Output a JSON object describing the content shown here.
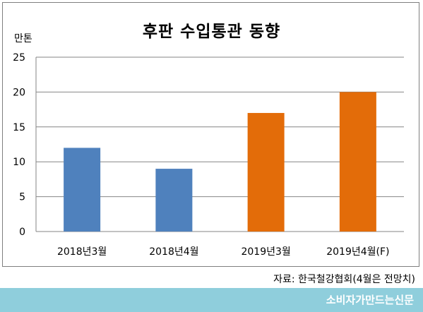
{
  "chart_data": {
    "type": "bar",
    "title": "후판 수입통관 동향",
    "unit_label": "만톤",
    "categories": [
      "2018년3월",
      "2018년4월",
      "2019년3월",
      "2019년4월(F)"
    ],
    "values": [
      12,
      9,
      17,
      20
    ],
    "bar_colors": [
      "#4f81bd",
      "#4f81bd",
      "#e36c09",
      "#e36c09"
    ],
    "ylim": [
      0,
      25
    ],
    "yticks": [
      "0",
      "5",
      "10",
      "15",
      "20",
      "25"
    ],
    "grid": true,
    "legend": "none"
  },
  "source_note": "자료: 한국철강협회(4월은 전망치)",
  "footer_brand": "소비자가만드는신문",
  "colors": {
    "footer_bg": "#8fcedc",
    "grid": "#868686",
    "frame": "#7f7f7f"
  }
}
